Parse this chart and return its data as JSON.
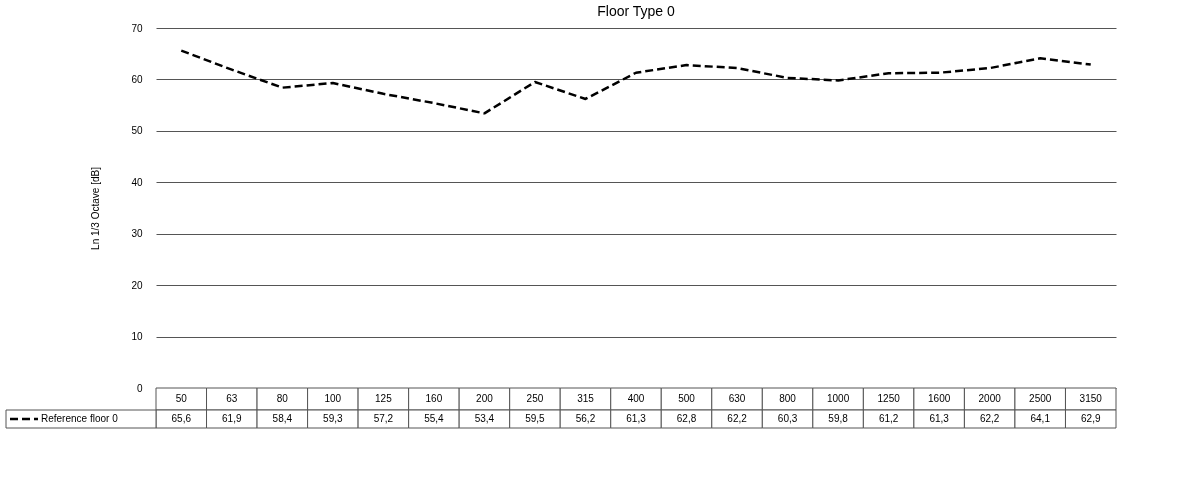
{
  "chart_data": {
    "type": "line",
    "title": "Floor Type 0",
    "ylabel": "Ln 1/3 Octave [dB]",
    "categories": [
      "50",
      "63",
      "80",
      "100",
      "125",
      "160",
      "200",
      "250",
      "315",
      "400",
      "500",
      "630",
      "800",
      "1000",
      "1250",
      "1600",
      "2000",
      "2500",
      "3150"
    ],
    "series": [
      {
        "name": "Reference floor 0",
        "color": "#000000",
        "line_style": "dashed",
        "values": [
          65.6,
          61.9,
          58.4,
          59.3,
          57.2,
          55.4,
          53.4,
          59.5,
          56.2,
          61.3,
          62.8,
          62.2,
          60.3,
          59.8,
          61.2,
          61.3,
          62.2,
          64.1,
          62.9
        ],
        "value_labels": [
          "65,6",
          "61,9",
          "58,4",
          "59,3",
          "57,2",
          "55,4",
          "53,4",
          "59,5",
          "56,2",
          "61,3",
          "62,8",
          "62,2",
          "60,3",
          "59,8",
          "61,2",
          "61,3",
          "62,2",
          "64,1",
          "62,9"
        ]
      }
    ],
    "ylim": [
      0,
      70
    ],
    "yticks": [
      0,
      10,
      20,
      30,
      40,
      50,
      60,
      70
    ],
    "grid": "y",
    "legend": "bottom",
    "marker": "none"
  }
}
